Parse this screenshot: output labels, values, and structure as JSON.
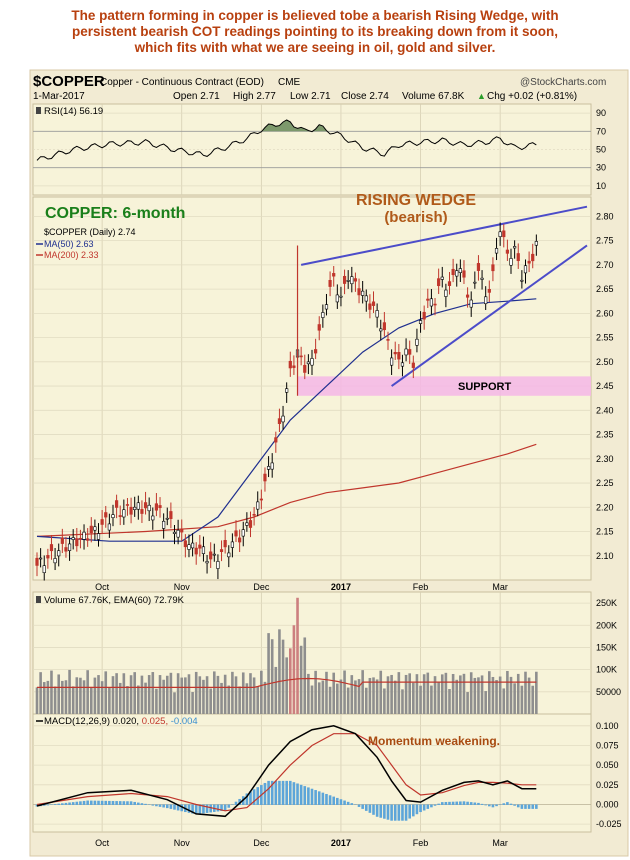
{
  "headline": [
    "The pattern forming in copper is believed tobe a bearish Rising Wedge, with",
    "persistent bearish COT readings pointing to its breaking down from it soon,",
    "which fits with what we are seeing in oil, gold and silver."
  ],
  "header": {
    "symbol": "$COPPER",
    "description": "Copper - Continuous Contract (EOD)",
    "exchange": "CME",
    "watermark": "@StockCharts.com",
    "date": "1-Mar-2017",
    "open": "Open 2.71",
    "high": "High 2.77",
    "low": "Low 2.71",
    "close": "Close 2.74",
    "volume": "Volume 67.8K",
    "chg": "Chg +0.02 (+0.81%)",
    "chg_arrow": "▲"
  },
  "annotations": {
    "period": "COPPER: 6-month",
    "wedge_title": "RISING WEDGE",
    "wedge_sub": "(bearish)",
    "support": "SUPPORT",
    "momentum": "Momentum weakening."
  },
  "legends": {
    "rsi": "RSI(14) 56.19",
    "price": "$COPPER (Daily) 2.74",
    "ma50": "MA(50) 2.63",
    "ma200": "MA(200) 2.33",
    "volume": "Volume 67.76K, EMA(60) 72.79K",
    "macd_a": "MACD(12,26,9) 0.020, ",
    "macd_b": "0.025, ",
    "macd_c": "-0.004"
  },
  "colors": {
    "panel_bg": "#f7f3d9",
    "frame": "#d8c9a7",
    "headline": "#b8400f",
    "green_text": "#1a7f1a",
    "wedge_text": "#b05a1a",
    "wedge_line": "#4c4cc9",
    "ma50": "#1f2f8f",
    "ma200": "#c0362c",
    "support": "#f5b6e6",
    "volume_bar": "#8e8e8e",
    "spike_bar": "#cc7f7f",
    "macd_hist": "#5ca5d9",
    "rsi_fill": "#6f8f5f"
  },
  "chart_data": {
    "type": "line",
    "title": "$COPPER",
    "x_ticks": [
      "Oct",
      "Nov",
      "Dec",
      "2017",
      "Feb",
      "Mar"
    ],
    "price": {
      "y_ticks": [
        2.1,
        2.15,
        2.2,
        2.25,
        2.3,
        2.35,
        2.4,
        2.45,
        2.5,
        2.55,
        2.6,
        2.65,
        2.7,
        2.75,
        2.8
      ],
      "ylim": [
        2.05,
        2.84
      ],
      "close_series": [
        [
          0,
          2.08
        ],
        [
          8,
          2.12
        ],
        [
          16,
          2.15
        ],
        [
          22,
          2.19
        ],
        [
          28,
          2.2
        ],
        [
          34,
          2.19
        ],
        [
          38,
          2.16
        ],
        [
          42,
          2.12
        ],
        [
          46,
          2.11
        ],
        [
          48,
          2.09
        ],
        [
          52,
          2.11
        ],
        [
          56,
          2.14
        ],
        [
          60,
          2.18
        ],
        [
          63,
          2.25
        ],
        [
          66,
          2.33
        ],
        [
          68,
          2.4
        ],
        [
          70,
          2.48
        ],
        [
          72,
          2.52
        ],
        [
          74,
          2.49
        ],
        [
          76,
          2.5
        ],
        [
          78,
          2.56
        ],
        [
          80,
          2.63
        ],
        [
          82,
          2.67
        ],
        [
          84,
          2.63
        ],
        [
          86,
          2.68
        ],
        [
          88,
          2.66
        ],
        [
          90,
          2.64
        ],
        [
          92,
          2.62
        ],
        [
          94,
          2.6
        ],
        [
          96,
          2.56
        ],
        [
          98,
          2.52
        ],
        [
          100,
          2.5
        ],
        [
          102,
          2.52
        ],
        [
          104,
          2.5
        ],
        [
          106,
          2.58
        ],
        [
          108,
          2.62
        ],
        [
          110,
          2.63
        ],
        [
          112,
          2.67
        ],
        [
          114,
          2.65
        ],
        [
          116,
          2.7
        ],
        [
          118,
          2.67
        ],
        [
          120,
          2.62
        ],
        [
          122,
          2.7
        ],
        [
          124,
          2.63
        ],
        [
          126,
          2.68
        ],
        [
          128,
          2.78
        ],
        [
          130,
          2.72
        ],
        [
          132,
          2.73
        ],
        [
          134,
          2.68
        ],
        [
          136,
          2.7
        ],
        [
          138,
          2.74
        ]
      ],
      "ma50": [
        [
          0,
          2.14
        ],
        [
          20,
          2.13
        ],
        [
          40,
          2.13
        ],
        [
          50,
          2.18
        ],
        [
          60,
          2.28
        ],
        [
          70,
          2.38
        ],
        [
          80,
          2.45
        ],
        [
          90,
          2.52
        ],
        [
          100,
          2.57
        ],
        [
          110,
          2.6
        ],
        [
          120,
          2.62
        ],
        [
          130,
          2.625
        ],
        [
          138,
          2.63
        ]
      ],
      "ma200": [
        [
          0,
          2.14
        ],
        [
          30,
          2.15
        ],
        [
          50,
          2.16
        ],
        [
          60,
          2.18
        ],
        [
          70,
          2.21
        ],
        [
          80,
          2.23
        ],
        [
          90,
          2.24
        ],
        [
          100,
          2.25
        ],
        [
          110,
          2.27
        ],
        [
          120,
          2.29
        ],
        [
          130,
          2.31
        ],
        [
          138,
          2.33
        ]
      ],
      "wedge_upper": [
        [
          73,
          2.7
        ],
        [
          152,
          2.82
        ]
      ],
      "wedge_lower": [
        [
          98,
          2.45
        ],
        [
          152,
          2.74
        ]
      ],
      "support_zone": [
        2.43,
        2.47
      ]
    },
    "rsi": {
      "y_ticks": [
        10,
        30,
        50,
        70,
        90
      ],
      "ylim": [
        0,
        100
      ],
      "last": 56.19,
      "series": [
        [
          0,
          38
        ],
        [
          10,
          50
        ],
        [
          20,
          56
        ],
        [
          30,
          58
        ],
        [
          38,
          50
        ],
        [
          46,
          44
        ],
        [
          52,
          52
        ],
        [
          58,
          62
        ],
        [
          62,
          72
        ],
        [
          66,
          78
        ],
        [
          70,
          80
        ],
        [
          74,
          70
        ],
        [
          78,
          75
        ],
        [
          84,
          65
        ],
        [
          90,
          52
        ],
        [
          96,
          45
        ],
        [
          100,
          55
        ],
        [
          106,
          58
        ],
        [
          112,
          60
        ],
        [
          118,
          55
        ],
        [
          124,
          58
        ],
        [
          128,
          62
        ],
        [
          132,
          52
        ],
        [
          136,
          54
        ],
        [
          138,
          56
        ]
      ]
    },
    "volume": {
      "y_ticks": [
        "50000",
        "100K",
        "150K",
        "200K",
        "250K"
      ],
      "ylim": [
        0,
        275000
      ],
      "last": "67.76K",
      "ema60": "72.79K"
    },
    "macd": {
      "y_ticks": [
        -0.025,
        0.0,
        0.025,
        0.05,
        0.075,
        0.1
      ],
      "ylim": [
        -0.035,
        0.115
      ],
      "params": "12,26,9",
      "macd": 0.02,
      "signal": 0.025,
      "histogram": -0.004
    }
  }
}
